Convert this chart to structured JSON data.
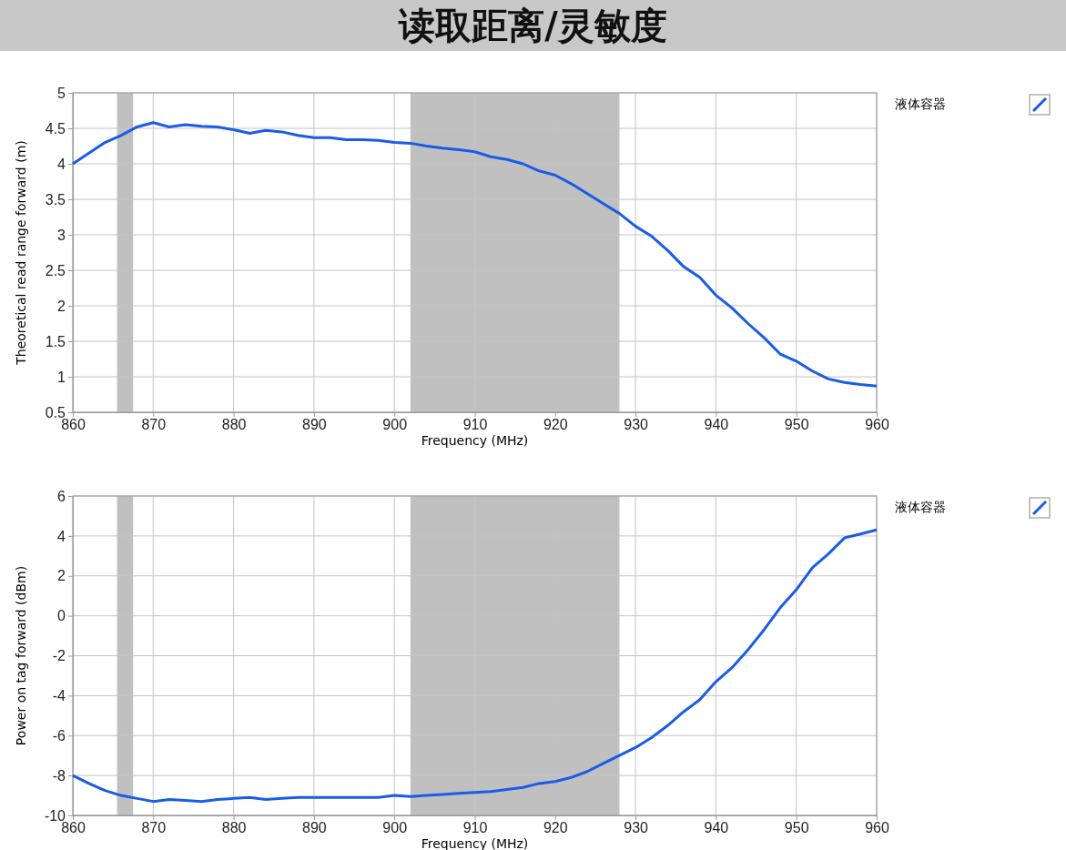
{
  "chart_data": [
    {
      "type": "line",
      "title": "读取距离/灵敏度",
      "xlabel": "Frequency (MHz)",
      "ylabel": "Theoretical read range forward (m)",
      "x": [
        860,
        862,
        864,
        866,
        868,
        870,
        872,
        874,
        876,
        878,
        880,
        882,
        884,
        886,
        888,
        890,
        892,
        894,
        896,
        898,
        900,
        902,
        904,
        906,
        908,
        910,
        912,
        914,
        916,
        918,
        920,
        922,
        924,
        926,
        928,
        930,
        932,
        934,
        936,
        938,
        940,
        942,
        944,
        946,
        948,
        950,
        952,
        954,
        956,
        958,
        960
      ],
      "series": [
        {
          "name": "液体容器",
          "color": "#1a5ce6",
          "values": [
            4.0,
            4.15,
            4.3,
            4.4,
            4.52,
            4.58,
            4.52,
            4.55,
            4.53,
            4.52,
            4.48,
            4.43,
            4.47,
            4.45,
            4.4,
            4.37,
            4.37,
            4.34,
            4.34,
            4.33,
            4.3,
            4.29,
            4.25,
            4.22,
            4.2,
            4.17,
            4.1,
            4.06,
            4.0,
            3.9,
            3.84,
            3.72,
            3.58,
            3.44,
            3.3,
            3.12,
            2.98,
            2.78,
            2.55,
            2.4,
            2.15,
            1.97,
            1.75,
            1.55,
            1.32,
            1.22,
            1.08,
            0.97,
            0.92,
            0.89,
            0.87
          ]
        }
      ],
      "xlim": [
        860,
        960
      ],
      "xticks": [
        860,
        870,
        880,
        890,
        900,
        910,
        920,
        930,
        940,
        950,
        960
      ],
      "ylim": [
        0.5,
        5
      ],
      "yticks": [
        {
          "value": 0.5,
          "label": "0.5"
        },
        1,
        {
          "value": 1.5,
          "label": "1.5"
        },
        2,
        {
          "value": 2.5,
          "label": "2.5"
        },
        3,
        {
          "value": 3.5,
          "label": "3.5"
        },
        4,
        {
          "value": 4.5,
          "label": "4.5"
        },
        5
      ],
      "bands": [
        {
          "axis": "x",
          "from": 865.5,
          "to": 867.5,
          "color": "#c0c0c0"
        },
        {
          "axis": "x",
          "from": 902,
          "to": 928,
          "color": "#c0c0c0"
        }
      ],
      "grid": true,
      "legend": "top right",
      "marker": "none",
      "line_style": "solid"
    },
    {
      "type": "line",
      "xlabel": "Frequency (MHz)",
      "ylabel": "Power on tag forward (dBm)",
      "x": [
        860,
        862,
        864,
        866,
        868,
        870,
        872,
        874,
        876,
        878,
        880,
        882,
        884,
        886,
        888,
        890,
        892,
        894,
        896,
        898,
        900,
        902,
        904,
        906,
        908,
        910,
        912,
        914,
        916,
        918,
        920,
        922,
        924,
        926,
        928,
        930,
        932,
        934,
        936,
        938,
        940,
        942,
        944,
        946,
        948,
        950,
        952,
        954,
        956,
        958,
        960
      ],
      "series": [
        {
          "name": "液体容器",
          "color": "#1a5ce6",
          "values": [
            -8.0,
            -8.4,
            -8.75,
            -9.0,
            -9.15,
            -9.3,
            -9.2,
            -9.25,
            -9.3,
            -9.2,
            -9.15,
            -9.1,
            -9.2,
            -9.15,
            -9.1,
            -9.1,
            -9.1,
            -9.1,
            -9.1,
            -9.1,
            -9.0,
            -9.05,
            -9.0,
            -8.95,
            -8.9,
            -8.85,
            -8.8,
            -8.7,
            -8.6,
            -8.4,
            -8.3,
            -8.1,
            -7.8,
            -7.4,
            -7.0,
            -6.6,
            -6.1,
            -5.5,
            -4.8,
            -4.2,
            -3.3,
            -2.6,
            -1.7,
            -0.7,
            0.4,
            1.3,
            2.4,
            3.1,
            3.9,
            4.1,
            4.3
          ]
        }
      ],
      "xlim": [
        860,
        960
      ],
      "xticks": [
        860,
        870,
        880,
        890,
        900,
        910,
        920,
        930,
        940,
        950,
        960
      ],
      "ylim": [
        -10,
        6
      ],
      "yticks": [
        -10,
        -8,
        -6,
        -4,
        -2,
        0,
        2,
        4,
        6
      ],
      "bands": [
        {
          "axis": "x",
          "from": 865.5,
          "to": 867.5,
          "color": "#c0c0c0"
        },
        {
          "axis": "x",
          "from": 902,
          "to": 928,
          "color": "#c0c0c0"
        }
      ],
      "grid": true,
      "legend": "top right",
      "marker": "none",
      "line_style": "solid"
    }
  ]
}
